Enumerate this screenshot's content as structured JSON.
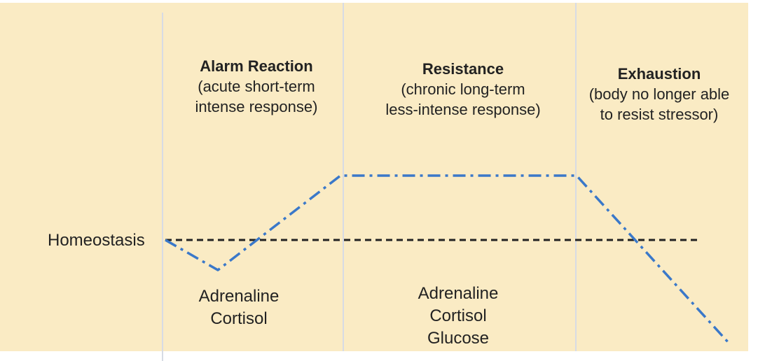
{
  "baseline_label": "Homeostasis",
  "stages": [
    {
      "title": "Alarm Reaction",
      "lines": [
        "(acute short-term",
        "intense response)"
      ],
      "hormones": [
        "Adrenaline",
        "Cortisol"
      ]
    },
    {
      "title": "Resistance",
      "lines": [
        "(chronic long-term",
        "less-intense response)"
      ],
      "hormones": [
        "Adrenaline",
        "Cortisol",
        "Glucose"
      ]
    },
    {
      "title": "Exhaustion",
      "lines": [
        "(body no longer able",
        "to resist stressor)"
      ],
      "hormones": []
    }
  ],
  "colors": {
    "background": "#faebc4",
    "response_line": "#3a78c9",
    "homeostasis_line": "#222222",
    "dividers": "#d7dbe4"
  }
}
